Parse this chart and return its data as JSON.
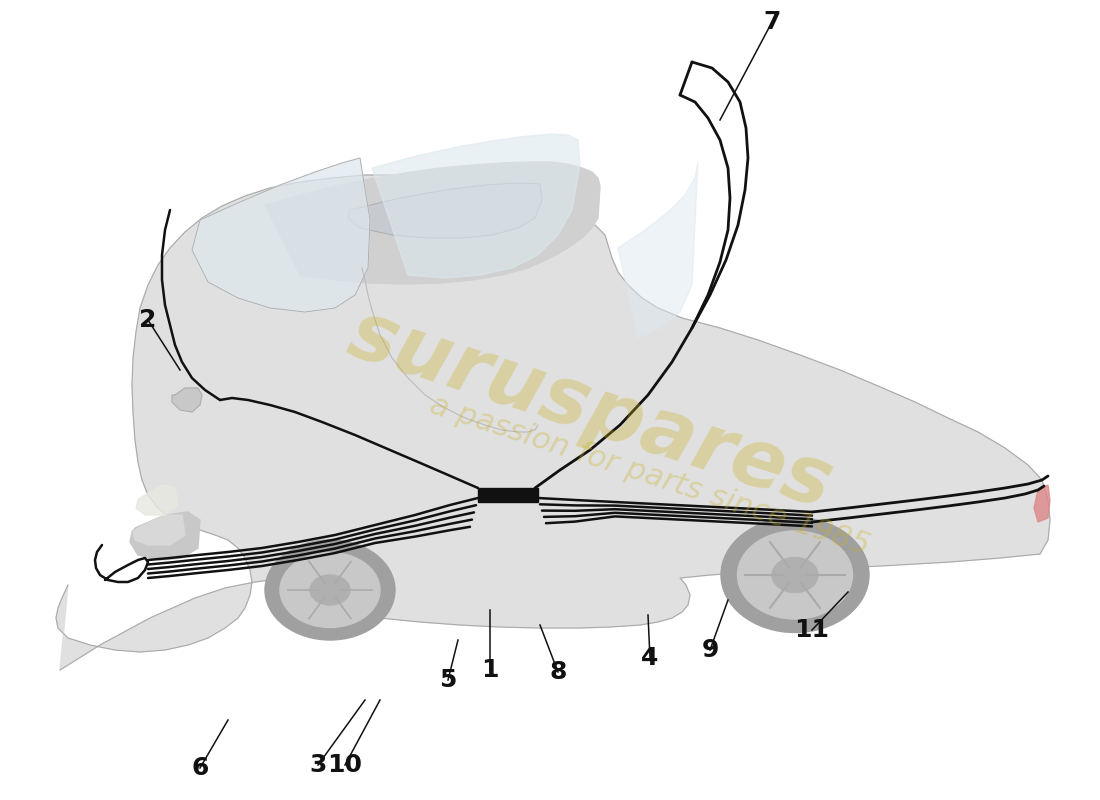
{
  "background_color": "#ffffff",
  "car_body_color": "#e0e0e0",
  "car_body_edge": "#aaaaaa",
  "roof_color": "#d8d8d8",
  "glass_color": "#dde8ee",
  "wheel_dark": "#888888",
  "wheel_mid": "#bbbbbb",
  "wheel_hub": "#999999",
  "cable_color": "#111111",
  "label_color": "#111111",
  "watermark_color": "#c8b020",
  "watermark_text1": "suruspares",
  "watermark_text2": "a passion for parts since 1985",
  "label_fontsize": 18,
  "figsize": [
    11.0,
    8.0
  ],
  "dpi": 100
}
